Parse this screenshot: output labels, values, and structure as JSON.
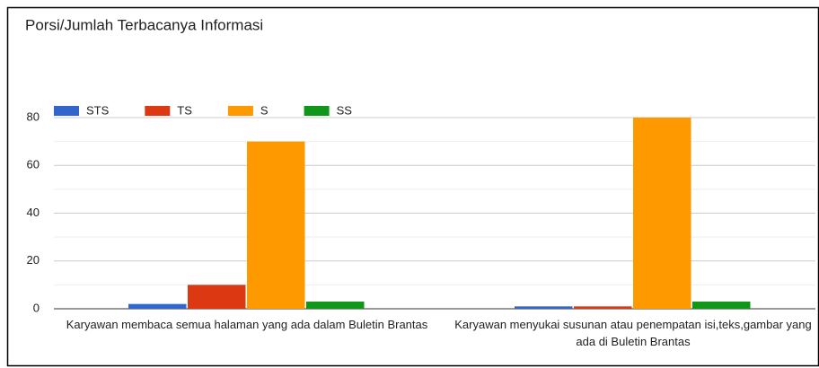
{
  "chart_data": {
    "type": "bar",
    "title": "Porsi/Jumlah Terbacanya Informasi",
    "categories": [
      "Karyawan membaca semua halaman yang ada dalam Buletin Brantas",
      "Karyawan menyukai susunan atau penempatan isi,teks,gambar yang ada di Buletin Brantas"
    ],
    "series": [
      {
        "name": "STS",
        "color": "#3366cc",
        "values": [
          2,
          1
        ]
      },
      {
        "name": "TS",
        "color": "#dc3912",
        "values": [
          10,
          1
        ]
      },
      {
        "name": "S",
        "color": "#ff9900",
        "values": [
          70,
          80
        ]
      },
      {
        "name": "SS",
        "color": "#109618",
        "values": [
          3,
          3
        ]
      }
    ],
    "ylim": [
      0,
      80
    ],
    "yticks": [
      0,
      20,
      40,
      60,
      80
    ],
    "minor_yticks": [
      10,
      30,
      50,
      70
    ],
    "grid": true,
    "legend": "top-left"
  }
}
